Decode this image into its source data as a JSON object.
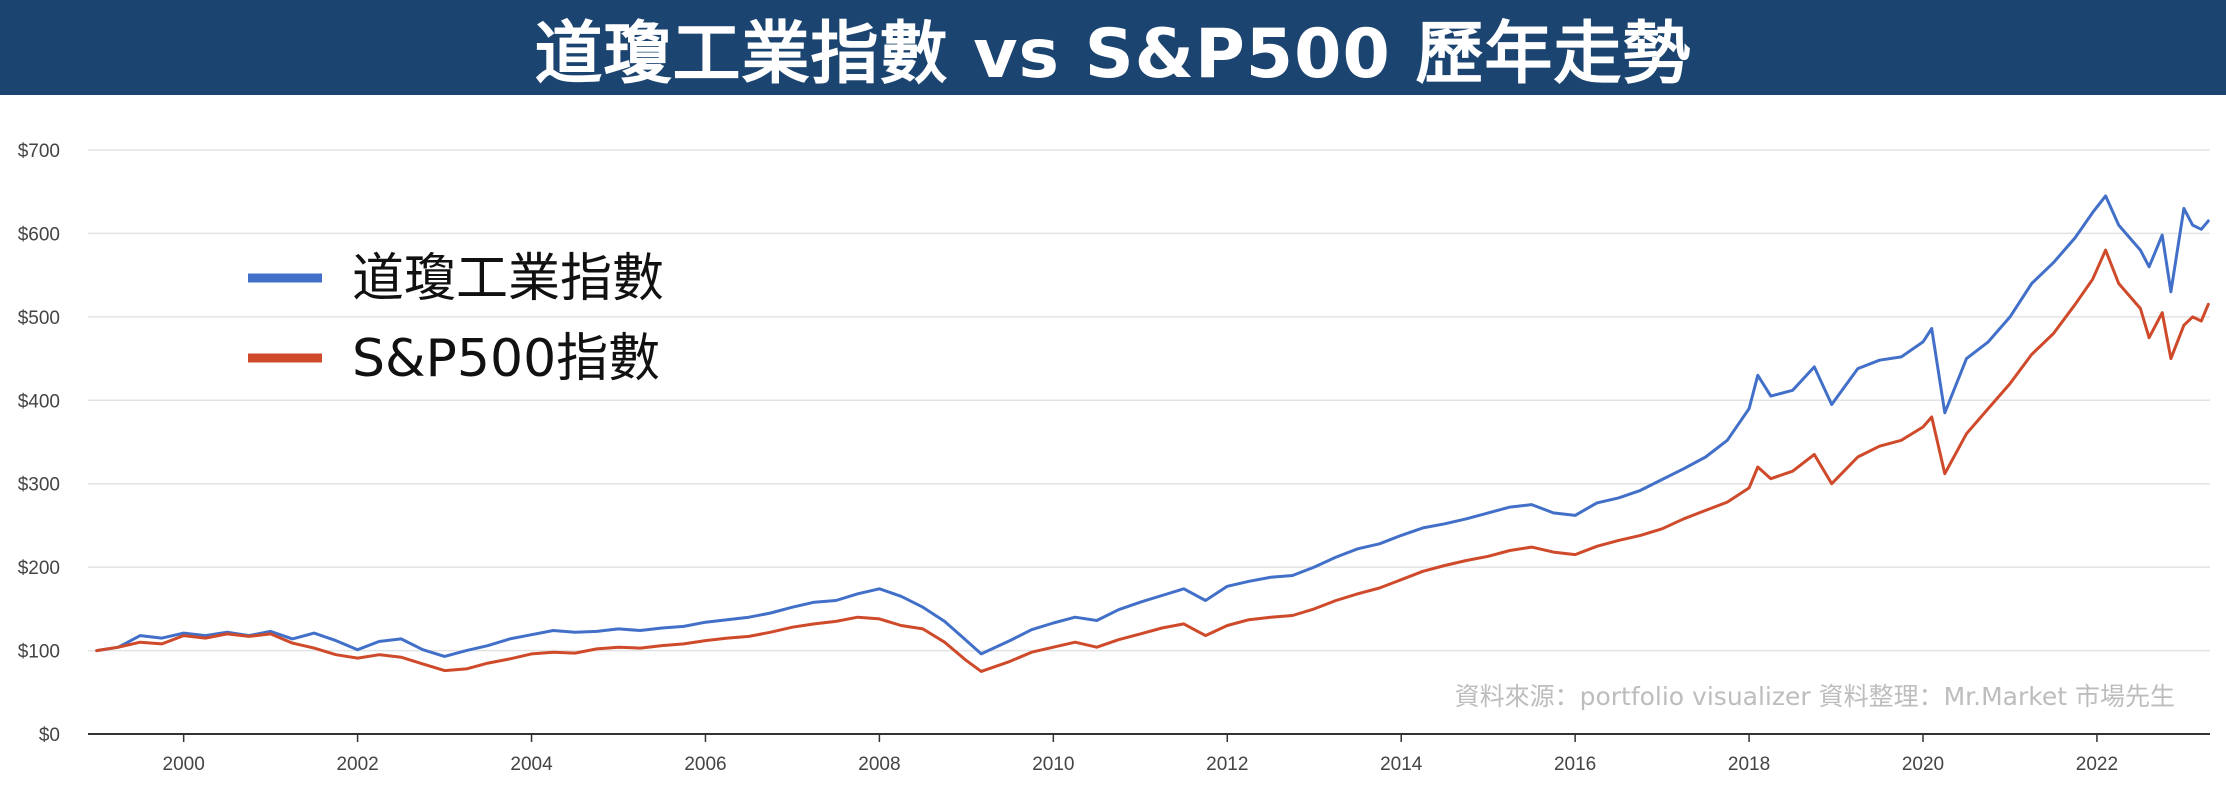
{
  "colors": {
    "banner": "#1c4470",
    "dow": "#4270c8",
    "sp500": "#cf4a2a",
    "grid": "#e3e3e3",
    "axis": "#333333"
  },
  "chart_data": {
    "type": "line",
    "title": "道瓊工業指數 vs S&P500 歷年走勢",
    "xlabel": "",
    "ylabel": "",
    "xlim": [
      1998.9,
      2023.3
    ],
    "ylim": [
      0,
      700
    ],
    "y_ticks": [
      0,
      100,
      200,
      300,
      400,
      500,
      600,
      700
    ],
    "y_tick_labels": [
      "$0",
      "$100",
      "$200",
      "$300",
      "$400",
      "$500",
      "$600",
      "$700"
    ],
    "x_ticks": [
      2000,
      2002,
      2004,
      2006,
      2008,
      2010,
      2012,
      2014,
      2016,
      2018,
      2020,
      2022
    ],
    "x_tick_labels": [
      "2000",
      "2002",
      "2004",
      "2006",
      "2008",
      "2010",
      "2012",
      "2014",
      "2016",
      "2018",
      "2020",
      "2022"
    ],
    "grid": "horizontal",
    "legend_position": "top-left",
    "annotation": "資料來源：portfolio visualizer  資料整理：Mr.Market 市場先生",
    "series": [
      {
        "name": "道瓊工業指數",
        "color": "#4270c8",
        "points": [
          [
            1999.0,
            100
          ],
          [
            1999.25,
            104
          ],
          [
            1999.5,
            118
          ],
          [
            1999.75,
            115
          ],
          [
            2000.0,
            121
          ],
          [
            2000.25,
            118
          ],
          [
            2000.5,
            122
          ],
          [
            2000.75,
            118
          ],
          [
            2001.0,
            123
          ],
          [
            2001.25,
            114
          ],
          [
            2001.5,
            121
          ],
          [
            2001.75,
            112
          ],
          [
            2002.0,
            101
          ],
          [
            2002.25,
            111
          ],
          [
            2002.5,
            114
          ],
          [
            2002.75,
            101
          ],
          [
            2003.0,
            93
          ],
          [
            2003.25,
            100
          ],
          [
            2003.5,
            106
          ],
          [
            2003.75,
            114
          ],
          [
            2004.0,
            119
          ],
          [
            2004.25,
            124
          ],
          [
            2004.5,
            122
          ],
          [
            2004.75,
            123
          ],
          [
            2005.0,
            126
          ],
          [
            2005.25,
            124
          ],
          [
            2005.5,
            127
          ],
          [
            2005.75,
            129
          ],
          [
            2006.0,
            134
          ],
          [
            2006.25,
            137
          ],
          [
            2006.5,
            140
          ],
          [
            2006.75,
            145
          ],
          [
            2007.0,
            152
          ],
          [
            2007.25,
            158
          ],
          [
            2007.5,
            160
          ],
          [
            2007.75,
            168
          ],
          [
            2008.0,
            174
          ],
          [
            2008.25,
            165
          ],
          [
            2008.5,
            152
          ],
          [
            2008.75,
            135
          ],
          [
            2009.0,
            112
          ],
          [
            2009.17,
            96
          ],
          [
            2009.5,
            112
          ],
          [
            2009.75,
            125
          ],
          [
            2010.0,
            133
          ],
          [
            2010.25,
            140
          ],
          [
            2010.5,
            136
          ],
          [
            2010.75,
            149
          ],
          [
            2011.0,
            158
          ],
          [
            2011.25,
            166
          ],
          [
            2011.5,
            174
          ],
          [
            2011.75,
            160
          ],
          [
            2012.0,
            177
          ],
          [
            2012.25,
            183
          ],
          [
            2012.5,
            188
          ],
          [
            2012.75,
            190
          ],
          [
            2013.0,
            200
          ],
          [
            2013.25,
            212
          ],
          [
            2013.5,
            222
          ],
          [
            2013.75,
            228
          ],
          [
            2014.0,
            238
          ],
          [
            2014.25,
            247
          ],
          [
            2014.5,
            252
          ],
          [
            2014.75,
            258
          ],
          [
            2015.0,
            265
          ],
          [
            2015.25,
            272
          ],
          [
            2015.5,
            275
          ],
          [
            2015.75,
            265
          ],
          [
            2016.0,
            262
          ],
          [
            2016.25,
            277
          ],
          [
            2016.5,
            283
          ],
          [
            2016.75,
            292
          ],
          [
            2017.0,
            305
          ],
          [
            2017.25,
            318
          ],
          [
            2017.5,
            332
          ],
          [
            2017.75,
            352
          ],
          [
            2018.0,
            390
          ],
          [
            2018.1,
            430
          ],
          [
            2018.25,
            405
          ],
          [
            2018.5,
            412
          ],
          [
            2018.75,
            440
          ],
          [
            2018.95,
            395
          ],
          [
            2019.25,
            438
          ],
          [
            2019.5,
            448
          ],
          [
            2019.75,
            452
          ],
          [
            2020.0,
            470
          ],
          [
            2020.1,
            486
          ],
          [
            2020.25,
            385
          ],
          [
            2020.5,
            450
          ],
          [
            2020.75,
            470
          ],
          [
            2021.0,
            500
          ],
          [
            2021.25,
            540
          ],
          [
            2021.5,
            565
          ],
          [
            2021.75,
            595
          ],
          [
            2021.95,
            625
          ],
          [
            2022.1,
            645
          ],
          [
            2022.25,
            610
          ],
          [
            2022.5,
            580
          ],
          [
            2022.6,
            560
          ],
          [
            2022.75,
            598
          ],
          [
            2022.85,
            530
          ],
          [
            2023.0,
            630
          ],
          [
            2023.1,
            610
          ],
          [
            2023.2,
            605
          ],
          [
            2023.28,
            615
          ]
        ]
      },
      {
        "name": "S&P500指數",
        "color": "#cf4a2a",
        "points": [
          [
            1999.0,
            100
          ],
          [
            1999.25,
            104
          ],
          [
            1999.5,
            110
          ],
          [
            1999.75,
            108
          ],
          [
            2000.0,
            118
          ],
          [
            2000.25,
            115
          ],
          [
            2000.5,
            120
          ],
          [
            2000.75,
            117
          ],
          [
            2001.0,
            120
          ],
          [
            2001.25,
            109
          ],
          [
            2001.5,
            103
          ],
          [
            2001.75,
            95
          ],
          [
            2002.0,
            91
          ],
          [
            2002.25,
            95
          ],
          [
            2002.5,
            92
          ],
          [
            2002.75,
            84
          ],
          [
            2003.0,
            76
          ],
          [
            2003.25,
            78
          ],
          [
            2003.5,
            85
          ],
          [
            2003.75,
            90
          ],
          [
            2004.0,
            96
          ],
          [
            2004.25,
            98
          ],
          [
            2004.5,
            97
          ],
          [
            2004.75,
            102
          ],
          [
            2005.0,
            104
          ],
          [
            2005.25,
            103
          ],
          [
            2005.5,
            106
          ],
          [
            2005.75,
            108
          ],
          [
            2006.0,
            112
          ],
          [
            2006.25,
            115
          ],
          [
            2006.5,
            117
          ],
          [
            2006.75,
            122
          ],
          [
            2007.0,
            128
          ],
          [
            2007.25,
            132
          ],
          [
            2007.5,
            135
          ],
          [
            2007.75,
            140
          ],
          [
            2008.0,
            138
          ],
          [
            2008.25,
            130
          ],
          [
            2008.5,
            126
          ],
          [
            2008.75,
            110
          ],
          [
            2009.0,
            88
          ],
          [
            2009.17,
            75
          ],
          [
            2009.5,
            87
          ],
          [
            2009.75,
            98
          ],
          [
            2010.0,
            104
          ],
          [
            2010.25,
            110
          ],
          [
            2010.5,
            104
          ],
          [
            2010.75,
            113
          ],
          [
            2011.0,
            120
          ],
          [
            2011.25,
            127
          ],
          [
            2011.5,
            132
          ],
          [
            2011.75,
            118
          ],
          [
            2012.0,
            130
          ],
          [
            2012.25,
            137
          ],
          [
            2012.5,
            140
          ],
          [
            2012.75,
            142
          ],
          [
            2013.0,
            150
          ],
          [
            2013.25,
            160
          ],
          [
            2013.5,
            168
          ],
          [
            2013.75,
            175
          ],
          [
            2014.0,
            185
          ],
          [
            2014.25,
            195
          ],
          [
            2014.5,
            202
          ],
          [
            2014.75,
            208
          ],
          [
            2015.0,
            213
          ],
          [
            2015.25,
            220
          ],
          [
            2015.5,
            224
          ],
          [
            2015.75,
            218
          ],
          [
            2016.0,
            215
          ],
          [
            2016.25,
            225
          ],
          [
            2016.5,
            232
          ],
          [
            2016.75,
            238
          ],
          [
            2017.0,
            246
          ],
          [
            2017.25,
            258
          ],
          [
            2017.5,
            268
          ],
          [
            2017.75,
            278
          ],
          [
            2018.0,
            295
          ],
          [
            2018.1,
            320
          ],
          [
            2018.25,
            306
          ],
          [
            2018.5,
            315
          ],
          [
            2018.75,
            335
          ],
          [
            2018.95,
            300
          ],
          [
            2019.25,
            332
          ],
          [
            2019.5,
            345
          ],
          [
            2019.75,
            352
          ],
          [
            2020.0,
            368
          ],
          [
            2020.1,
            380
          ],
          [
            2020.25,
            312
          ],
          [
            2020.5,
            360
          ],
          [
            2020.75,
            390
          ],
          [
            2021.0,
            420
          ],
          [
            2021.25,
            455
          ],
          [
            2021.5,
            480
          ],
          [
            2021.75,
            515
          ],
          [
            2021.95,
            545
          ],
          [
            2022.1,
            580
          ],
          [
            2022.25,
            540
          ],
          [
            2022.5,
            510
          ],
          [
            2022.6,
            475
          ],
          [
            2022.75,
            505
          ],
          [
            2022.85,
            450
          ],
          [
            2023.0,
            490
          ],
          [
            2023.1,
            500
          ],
          [
            2023.2,
            495
          ],
          [
            2023.28,
            515
          ]
        ]
      }
    ]
  }
}
